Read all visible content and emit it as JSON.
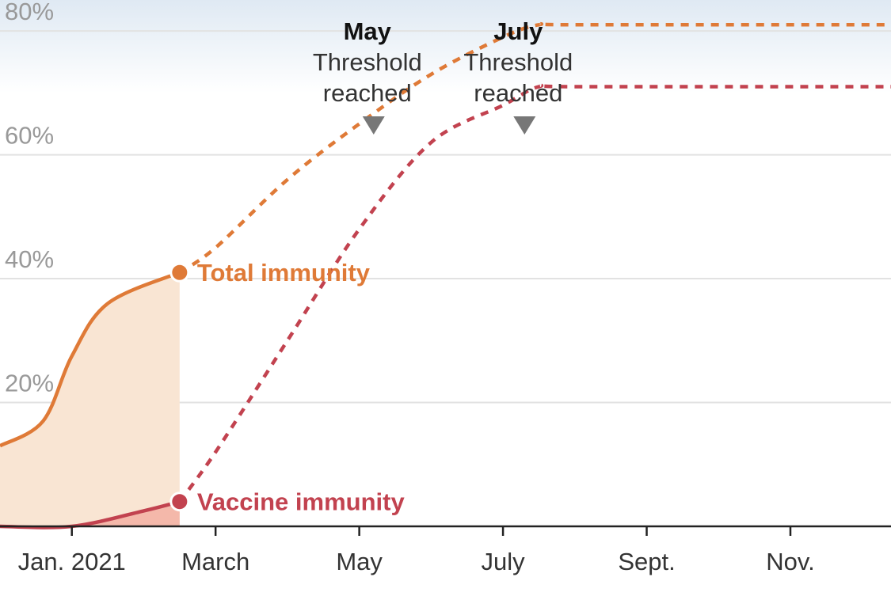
{
  "chart_data": {
    "type": "line",
    "title": "",
    "xlabel": "",
    "ylabel": "",
    "ylim": [
      0,
      85
    ],
    "y_ticks": [
      {
        "value": 20,
        "label": "20%"
      },
      {
        "value": 40,
        "label": "40%"
      },
      {
        "value": 60,
        "label": "60%"
      },
      {
        "value": 80,
        "label": "80%"
      }
    ],
    "x_domain_months": [
      -1.0,
      11.4
    ],
    "x_ticks": [
      {
        "month": 0,
        "label": "Jan. 2021"
      },
      {
        "month": 2,
        "label": "March"
      },
      {
        "month": 4,
        "label": "May"
      },
      {
        "month": 6,
        "label": "July"
      },
      {
        "month": 8,
        "label": "Sept."
      },
      {
        "month": 10,
        "label": "Nov."
      }
    ],
    "threshold_band": {
      "from": 70,
      "to": 85
    },
    "series": [
      {
        "name": "Total immunity",
        "label": "Total immunity",
        "color": "#df7a37",
        "fill_color": "#f9e5d3",
        "observed": [
          [
            -1.0,
            13
          ],
          [
            -0.4,
            17
          ],
          [
            0.0,
            27.5
          ],
          [
            0.5,
            36
          ],
          [
            1.5,
            41
          ]
        ],
        "projected": [
          [
            1.5,
            41
          ],
          [
            2.0,
            45
          ],
          [
            3.0,
            56
          ],
          [
            4.0,
            65
          ],
          [
            5.0,
            73
          ],
          [
            6.0,
            79
          ],
          [
            6.5,
            81
          ],
          [
            7.0,
            81
          ],
          [
            11.4,
            81
          ]
        ]
      },
      {
        "name": "Vaccine immunity",
        "label": "Vaccine immunity",
        "color": "#c2424f",
        "fill_color": "#f4b8aa",
        "observed": [
          [
            -1.0,
            0
          ],
          [
            0.0,
            0
          ],
          [
            1.0,
            2.5
          ],
          [
            1.5,
            4
          ]
        ],
        "projected": [
          [
            1.5,
            4
          ],
          [
            2.0,
            12
          ],
          [
            3.0,
            30
          ],
          [
            4.0,
            48
          ],
          [
            5.0,
            62
          ],
          [
            6.0,
            68
          ],
          [
            6.5,
            71
          ],
          [
            7.0,
            71
          ],
          [
            11.4,
            71
          ]
        ]
      }
    ],
    "annotations": [
      {
        "month_label": "May",
        "text_line1": "Threshold",
        "text_line2": "reached",
        "x": 4.2,
        "y": 73
      },
      {
        "month_label": "July",
        "text_line1": "Threshold",
        "text_line2": "reached",
        "x": 6.3,
        "y": 71
      }
    ]
  }
}
